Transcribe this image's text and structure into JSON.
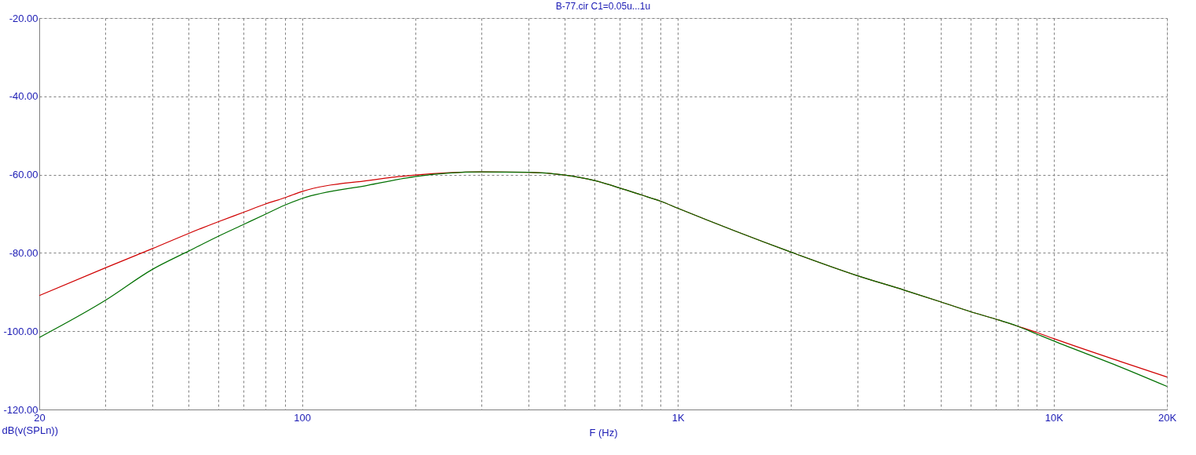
{
  "chart_data": {
    "type": "line",
    "title": "B-77.cir C1=0.05u...1u",
    "xlabel": "F (Hz)",
    "ylabel": "dB(v(SPLn))",
    "log": "x",
    "grid": true,
    "x": [
      20,
      30,
      40,
      50,
      60,
      70,
      80,
      90,
      100,
      150,
      200,
      300,
      400,
      500,
      600,
      700,
      800,
      900,
      1000,
      2000,
      3000,
      4000,
      5000,
      6000,
      7000,
      8000,
      9000,
      10000,
      15000,
      20000
    ],
    "series": [
      {
        "color": "#d00000",
        "values": [
          -90.9,
          -83.8,
          -78.9,
          -75.0,
          -72.0,
          -69.6,
          -67.5,
          -65.9,
          -64.3,
          -61.5,
          -60.1,
          -59.3,
          -59.4,
          -60.1,
          -61.5,
          -63.4,
          -65.2,
          -66.8,
          -68.6,
          -79.8,
          -85.8,
          -89.5,
          -92.5,
          -95.0,
          -96.9,
          -98.7,
          -100.3,
          -101.9,
          -107.7,
          -111.7
        ]
      },
      {
        "color": "#007000",
        "values": [
          -101.6,
          -92.1,
          -84.2,
          -79.5,
          -75.7,
          -72.7,
          -70.1,
          -67.8,
          -66.1,
          -62.7,
          -60.5,
          -59.3,
          -59.4,
          -60.1,
          -61.5,
          -63.4,
          -65.2,
          -66.8,
          -68.6,
          -79.8,
          -85.8,
          -89.5,
          -92.5,
          -95.0,
          -96.9,
          -98.7,
          -100.7,
          -102.5,
          -109.1,
          -114.1
        ]
      }
    ],
    "xlim": [
      20,
      20000
    ],
    "xticks": [
      20,
      {
        "value": 30,
        "label": null
      },
      {
        "value": 40,
        "label": null
      },
      {
        "value": 50,
        "label": null
      },
      {
        "value": 60,
        "label": null
      },
      {
        "value": 70,
        "label": null
      },
      {
        "value": 80,
        "label": null
      },
      {
        "value": 90,
        "label": null
      },
      100,
      {
        "value": 200,
        "label": null
      },
      {
        "value": 300,
        "label": null
      },
      {
        "value": 400,
        "label": null
      },
      {
        "value": 500,
        "label": null
      },
      {
        "value": 600,
        "label": null
      },
      {
        "value": 700,
        "label": null
      },
      {
        "value": 800,
        "label": null
      },
      {
        "value": 900,
        "label": null
      },
      {
        "value": 1000,
        "label": "1K"
      },
      {
        "value": 2000,
        "label": null
      },
      {
        "value": 3000,
        "label": null
      },
      {
        "value": 4000,
        "label": null
      },
      {
        "value": 5000,
        "label": null
      },
      {
        "value": 6000,
        "label": null
      },
      {
        "value": 7000,
        "label": null
      },
      {
        "value": 8000,
        "label": null
      },
      {
        "value": 9000,
        "label": null
      },
      {
        "value": 10000,
        "label": "10K"
      },
      {
        "value": 20000,
        "label": "20K"
      }
    ],
    "ylim": [
      -120,
      -20
    ],
    "yticks": [
      {
        "value": -120,
        "label": "-120.00"
      },
      {
        "value": -100,
        "label": "-100.00"
      },
      {
        "value": -80,
        "label": "-80.00"
      },
      {
        "value": -60,
        "label": "-60.00"
      },
      {
        "value": -40,
        "label": "-40.00"
      },
      {
        "value": -20,
        "label": "-20.00"
      }
    ]
  }
}
